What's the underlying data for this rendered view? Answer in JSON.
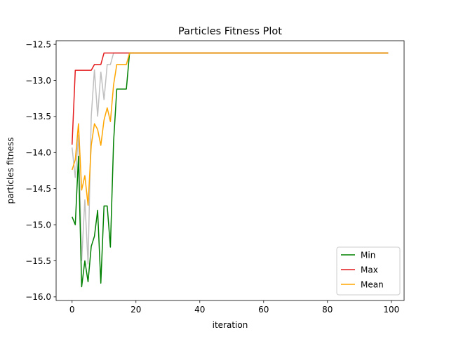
{
  "chart_data": {
    "type": "line",
    "title": "Particles Fitness Plot",
    "xlabel": "iteration",
    "ylabel": "particles fitness",
    "xlim": [
      -5,
      104
    ],
    "ylim": [
      -16.05,
      -12.45
    ],
    "xticks": [
      0,
      20,
      40,
      60,
      80,
      100
    ],
    "yticks": [
      -16.0,
      -15.5,
      -15.0,
      -14.5,
      -14.0,
      -13.5,
      -13.0,
      -12.5
    ],
    "ytick_labels": [
      "−16.0",
      "−15.5",
      "−15.0",
      "−14.5",
      "−14.0",
      "−13.5",
      "−13.0",
      "−12.5"
    ],
    "xtick_labels": [
      "0",
      "20",
      "40",
      "60",
      "80",
      "100"
    ],
    "grid": false,
    "legend_position": "lower-right",
    "background_series": [
      {
        "color": "#bfbfbf",
        "x": [
          0,
          1,
          2,
          3,
          4,
          5,
          6,
          7,
          8,
          9,
          10,
          11,
          12,
          13,
          14,
          15,
          16,
          17,
          18,
          99
        ],
        "y": [
          -13.93,
          -14.35,
          -13.75,
          -15.5,
          -14.65,
          -15.55,
          -13.5,
          -12.85,
          -13.5,
          -12.88,
          -13.27,
          -12.78,
          -12.78,
          -12.62,
          -12.62,
          -12.62,
          -12.62,
          -12.62,
          -12.62,
          -12.62
        ]
      }
    ],
    "series": [
      {
        "name": "Min",
        "color": "#008000",
        "x": [
          0,
          1,
          2,
          3,
          4,
          5,
          6,
          7,
          8,
          9,
          10,
          11,
          12,
          13,
          14,
          15,
          16,
          17,
          18,
          99
        ],
        "y": [
          -14.89,
          -15.0,
          -14.05,
          -15.86,
          -15.5,
          -15.79,
          -15.3,
          -15.16,
          -14.8,
          -15.81,
          -14.74,
          -14.74,
          -15.31,
          -13.85,
          -13.12,
          -13.12,
          -13.12,
          -13.12,
          -12.62,
          -12.62
        ]
      },
      {
        "name": "Max",
        "color": "#e41a1c",
        "x": [
          0,
          1,
          2,
          3,
          4,
          5,
          6,
          7,
          8,
          9,
          10,
          11,
          12,
          13,
          14,
          15,
          16,
          17,
          18,
          99
        ],
        "y": [
          -13.89,
          -12.86,
          -12.86,
          -12.86,
          -12.86,
          -12.86,
          -12.86,
          -12.78,
          -12.78,
          -12.78,
          -12.62,
          -12.62,
          -12.62,
          -12.62,
          -12.62,
          -12.62,
          -12.62,
          -12.62,
          -12.62,
          -12.62
        ]
      },
      {
        "name": "Mean",
        "color": "#ffa500",
        "x": [
          0,
          1,
          2,
          3,
          4,
          5,
          6,
          7,
          8,
          9,
          10,
          11,
          12,
          13,
          14,
          15,
          16,
          17,
          18,
          99
        ],
        "y": [
          -14.24,
          -14.1,
          -13.6,
          -14.52,
          -14.32,
          -14.73,
          -13.9,
          -13.6,
          -13.68,
          -13.9,
          -13.55,
          -13.38,
          -13.57,
          -13.06,
          -12.78,
          -12.78,
          -12.78,
          -12.78,
          -12.62,
          -12.62
        ]
      }
    ]
  }
}
